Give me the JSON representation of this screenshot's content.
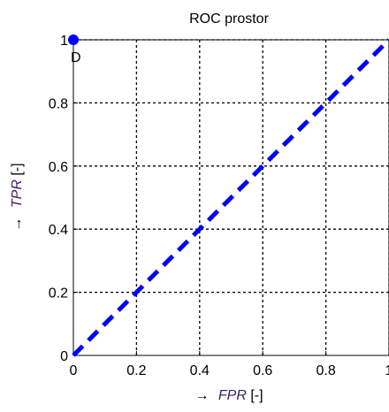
{
  "chart_data": {
    "type": "line",
    "title": "ROC prostor",
    "xlabel": {
      "arrow": "→",
      "var": "FPR",
      "unit": " [-]"
    },
    "ylabel": {
      "arrow": "→",
      "var": "TPR",
      "unit": " [-]"
    },
    "xlim": [
      0,
      1
    ],
    "ylim": [
      0,
      1
    ],
    "xticks": [
      0,
      0.2,
      0.4,
      0.6,
      0.8,
      1
    ],
    "xtick_labels": [
      "0",
      "0.2",
      "0.4",
      "0.6",
      "0.8",
      "1"
    ],
    "yticks": [
      0,
      0.2,
      0.4,
      0.6,
      0.8,
      1
    ],
    "ytick_labels": [
      "0",
      "0.2",
      "0.4",
      "0.6",
      "0.8",
      "1"
    ],
    "grid": true,
    "series": [
      {
        "style": "dashed",
        "color": "#0000ff",
        "x": [
          0,
          1
        ],
        "y": [
          0,
          1
        ]
      }
    ],
    "points": [
      {
        "label": "D",
        "x": 0,
        "y": 1,
        "color": "#0000ff"
      }
    ]
  },
  "colors": {
    "series": "#0000ff",
    "axis_label_var": "#402060",
    "grid": "#000000"
  }
}
